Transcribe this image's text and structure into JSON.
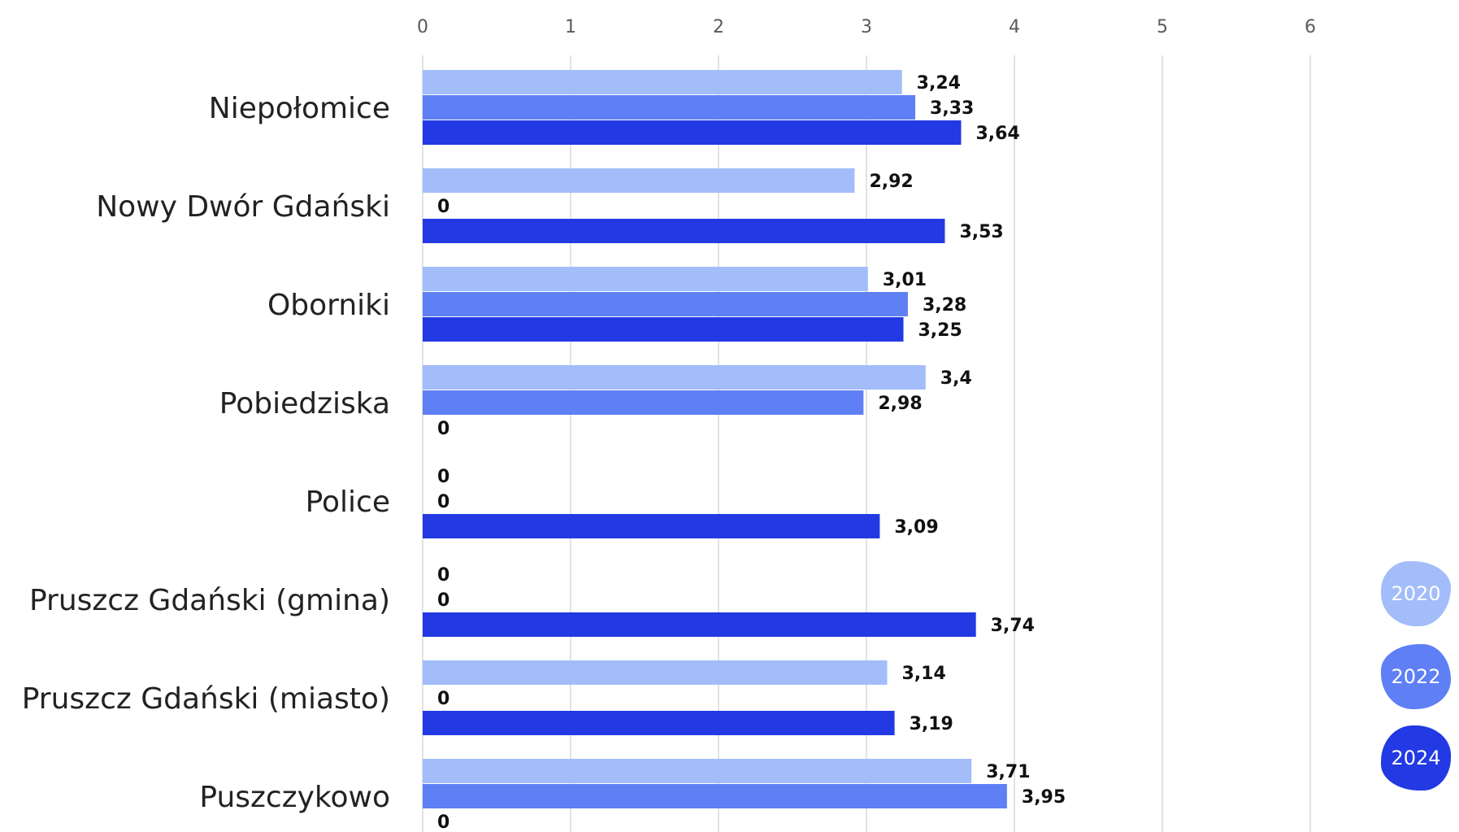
{
  "chart_data": {
    "type": "bar",
    "orientation": "horizontal",
    "title": "",
    "xlabel": "",
    "ylabel": "",
    "xlim": [
      0,
      6
    ],
    "x_ticks": [
      "0",
      "1",
      "2",
      "3",
      "4",
      "5",
      "6"
    ],
    "grid": true,
    "legend_position": "right",
    "categories": [
      "Niepołomice",
      "Nowy Dwór Gdański",
      "Oborniki",
      "Pobiedziska",
      "Police",
      "Pruszcz Gdański (gmina)",
      "Pruszcz Gdański (miasto)",
      "Puszczykowo"
    ],
    "series": [
      {
        "name": "2020",
        "color": "#a3bdfb",
        "values": [
          3.24,
          2.92,
          3.01,
          3.4,
          0,
          0,
          3.14,
          3.71
        ],
        "labels": [
          "3,24",
          "2,92",
          "3,01",
          "3,4",
          "0",
          "0",
          "3,14",
          "3,71"
        ]
      },
      {
        "name": "2022",
        "color": "#5f7ff5",
        "values": [
          3.33,
          0,
          3.28,
          2.98,
          0,
          0,
          0,
          3.95
        ],
        "labels": [
          "3,33",
          "0",
          "3,28",
          "2,98",
          "0",
          "0",
          "0",
          "3,95"
        ]
      },
      {
        "name": "2024",
        "color": "#2239e3",
        "values": [
          3.64,
          3.53,
          3.25,
          0,
          3.09,
          3.74,
          3.19,
          0
        ],
        "labels": [
          "3,64",
          "3,53",
          "3,25",
          "0",
          "3,09",
          "3,74",
          "3,19",
          "0"
        ]
      }
    ]
  }
}
